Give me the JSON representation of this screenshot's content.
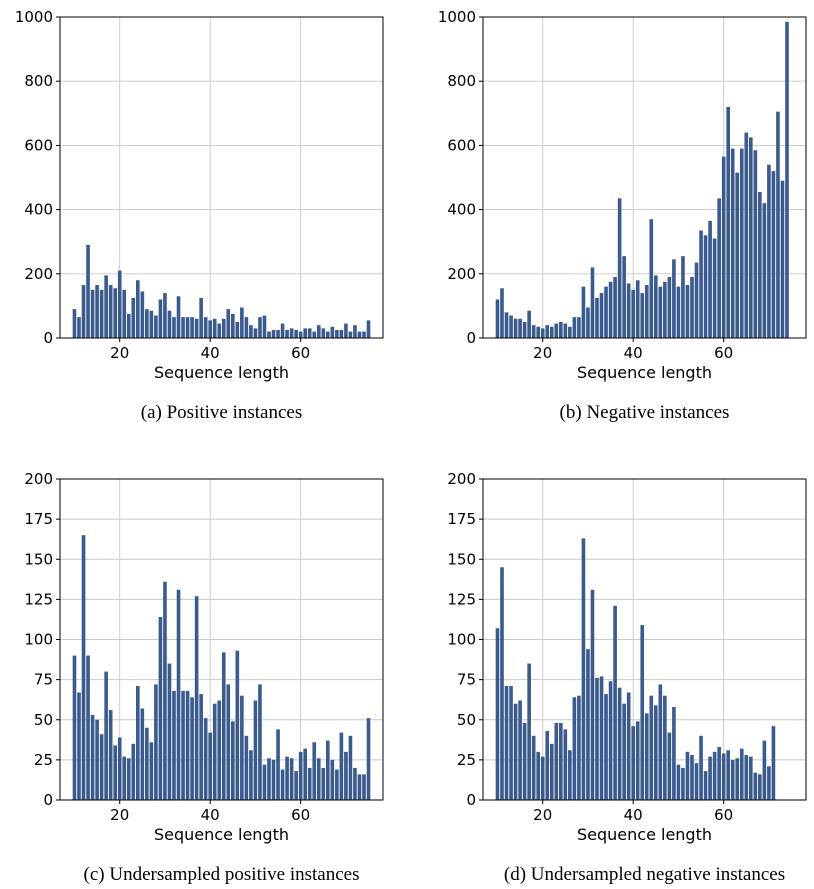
{
  "chart_data": [
    {
      "type": "bar",
      "caption": "(a) Positive instances",
      "xlabel": "Sequence length",
      "ylabel": "",
      "x": [
        10,
        11,
        12,
        13,
        14,
        15,
        16,
        17,
        18,
        19,
        20,
        21,
        22,
        23,
        24,
        25,
        26,
        27,
        28,
        29,
        30,
        31,
        32,
        33,
        34,
        35,
        36,
        37,
        38,
        39,
        40,
        41,
        42,
        43,
        44,
        45,
        46,
        47,
        48,
        49,
        50,
        51,
        52,
        53,
        54,
        55,
        56,
        57,
        58,
        59,
        60,
        61,
        62,
        63,
        64,
        65,
        66,
        67,
        68,
        69,
        70,
        71,
        72,
        73,
        74,
        75
      ],
      "values": [
        90,
        65,
        165,
        290,
        150,
        165,
        150,
        195,
        165,
        155,
        210,
        150,
        75,
        125,
        180,
        145,
        90,
        85,
        70,
        120,
        140,
        85,
        65,
        130,
        65,
        65,
        65,
        60,
        125,
        65,
        55,
        60,
        45,
        60,
        90,
        75,
        50,
        95,
        65,
        40,
        30,
        65,
        70,
        20,
        25,
        25,
        45,
        25,
        30,
        25,
        20,
        30,
        30,
        20,
        40,
        30,
        20,
        35,
        25,
        25,
        45,
        20,
        40,
        20,
        20,
        55
      ],
      "xticks": [
        20,
        40,
        60
      ],
      "yticks": [
        0,
        200,
        400,
        600,
        800,
        1000
      ],
      "ylim": [
        0,
        1000
      ],
      "grid": true
    },
    {
      "type": "bar",
      "caption": "(b) Negative instances",
      "xlabel": "Sequence length",
      "ylabel": "",
      "x": [
        10,
        11,
        12,
        13,
        14,
        15,
        16,
        17,
        18,
        19,
        20,
        21,
        22,
        23,
        24,
        25,
        26,
        27,
        28,
        29,
        30,
        31,
        32,
        33,
        34,
        35,
        36,
        37,
        38,
        39,
        40,
        41,
        42,
        43,
        44,
        45,
        46,
        47,
        48,
        49,
        50,
        51,
        52,
        53,
        54,
        55,
        56,
        57,
        58,
        59,
        60,
        61,
        62,
        63,
        64,
        65,
        66,
        67,
        68,
        69,
        70,
        71,
        72,
        73,
        74,
        75
      ],
      "values": [
        120,
        155,
        80,
        70,
        60,
        60,
        50,
        85,
        40,
        35,
        30,
        40,
        35,
        45,
        50,
        45,
        35,
        65,
        65,
        160,
        95,
        220,
        125,
        140,
        160,
        175,
        190,
        435,
        255,
        170,
        150,
        180,
        140,
        165,
        370,
        195,
        160,
        175,
        190,
        245,
        160,
        255,
        165,
        190,
        235,
        335,
        320,
        365,
        310,
        435,
        565,
        720,
        590,
        515,
        590,
        640,
        625,
        585,
        455,
        420,
        540,
        520,
        705,
        490,
        985,
        0
      ],
      "xticks": [
        20,
        40,
        60
      ],
      "yticks": [
        0,
        200,
        400,
        600,
        800,
        1000
      ],
      "ylim": [
        0,
        1000
      ],
      "grid": true
    },
    {
      "type": "bar",
      "caption": "(c) Undersampled positive instances",
      "xlabel": "Sequence length",
      "ylabel": "",
      "x": [
        10,
        11,
        12,
        13,
        14,
        15,
        16,
        17,
        18,
        19,
        20,
        21,
        22,
        23,
        24,
        25,
        26,
        27,
        28,
        29,
        30,
        31,
        32,
        33,
        34,
        35,
        36,
        37,
        38,
        39,
        40,
        41,
        42,
        43,
        44,
        45,
        46,
        47,
        48,
        49,
        50,
        51,
        52,
        53,
        54,
        55,
        56,
        57,
        58,
        59,
        60,
        61,
        62,
        63,
        64,
        65,
        66,
        67,
        68,
        69,
        70,
        71,
        72,
        73,
        74,
        75
      ],
      "values": [
        90,
        67,
        165,
        90,
        53,
        50,
        41,
        80,
        56,
        34,
        39,
        27,
        26,
        35,
        71,
        57,
        45,
        36,
        72,
        114,
        136,
        85,
        68,
        131,
        68,
        68,
        64,
        127,
        66,
        51,
        42,
        60,
        62,
        92,
        72,
        49,
        93,
        65,
        40,
        31,
        62,
        72,
        22,
        26,
        25,
        44,
        19,
        27,
        26,
        18,
        30,
        32,
        20,
        36,
        26,
        20,
        37,
        25,
        19,
        42,
        30,
        40,
        20,
        16,
        16,
        51
      ],
      "xticks": [
        20,
        40,
        60
      ],
      "yticks": [
        0,
        25,
        50,
        75,
        100,
        125,
        150,
        175,
        200
      ],
      "ylim": [
        0,
        200
      ],
      "grid": true
    },
    {
      "type": "bar",
      "caption": "(d) Undersampled negative instances",
      "xlabel": "Sequence length",
      "ylabel": "",
      "x": [
        10,
        11,
        12,
        13,
        14,
        15,
        16,
        17,
        18,
        19,
        20,
        21,
        22,
        23,
        24,
        25,
        26,
        27,
        28,
        29,
        30,
        31,
        32,
        33,
        34,
        35,
        36,
        37,
        38,
        39,
        40,
        41,
        42,
        43,
        44,
        45,
        46,
        47,
        48,
        49,
        50,
        51,
        52,
        53,
        54,
        55,
        56,
        57,
        58,
        59,
        60,
        61,
        62,
        63,
        64,
        65,
        66,
        67,
        68,
        69,
        70,
        71,
        72,
        73,
        74,
        75
      ],
      "values": [
        107,
        145,
        71,
        71,
        60,
        62,
        48,
        85,
        40,
        30,
        27,
        43,
        35,
        48,
        48,
        44,
        31,
        64,
        65,
        163,
        94,
        131,
        76,
        77,
        66,
        74,
        121,
        70,
        60,
        67,
        46,
        49,
        109,
        54,
        65,
        59,
        72,
        65,
        42,
        58,
        22,
        20,
        30,
        28,
        23,
        40,
        18,
        27,
        30,
        33,
        29,
        31,
        25,
        26,
        32,
        28,
        27,
        17,
        16,
        37,
        21,
        46,
        0,
        0,
        0,
        0
      ],
      "xticks": [
        20,
        40,
        60
      ],
      "yticks": [
        0,
        25,
        50,
        75,
        100,
        125,
        150,
        175,
        200
      ],
      "ylim": [
        0,
        200
      ],
      "grid": true
    }
  ]
}
